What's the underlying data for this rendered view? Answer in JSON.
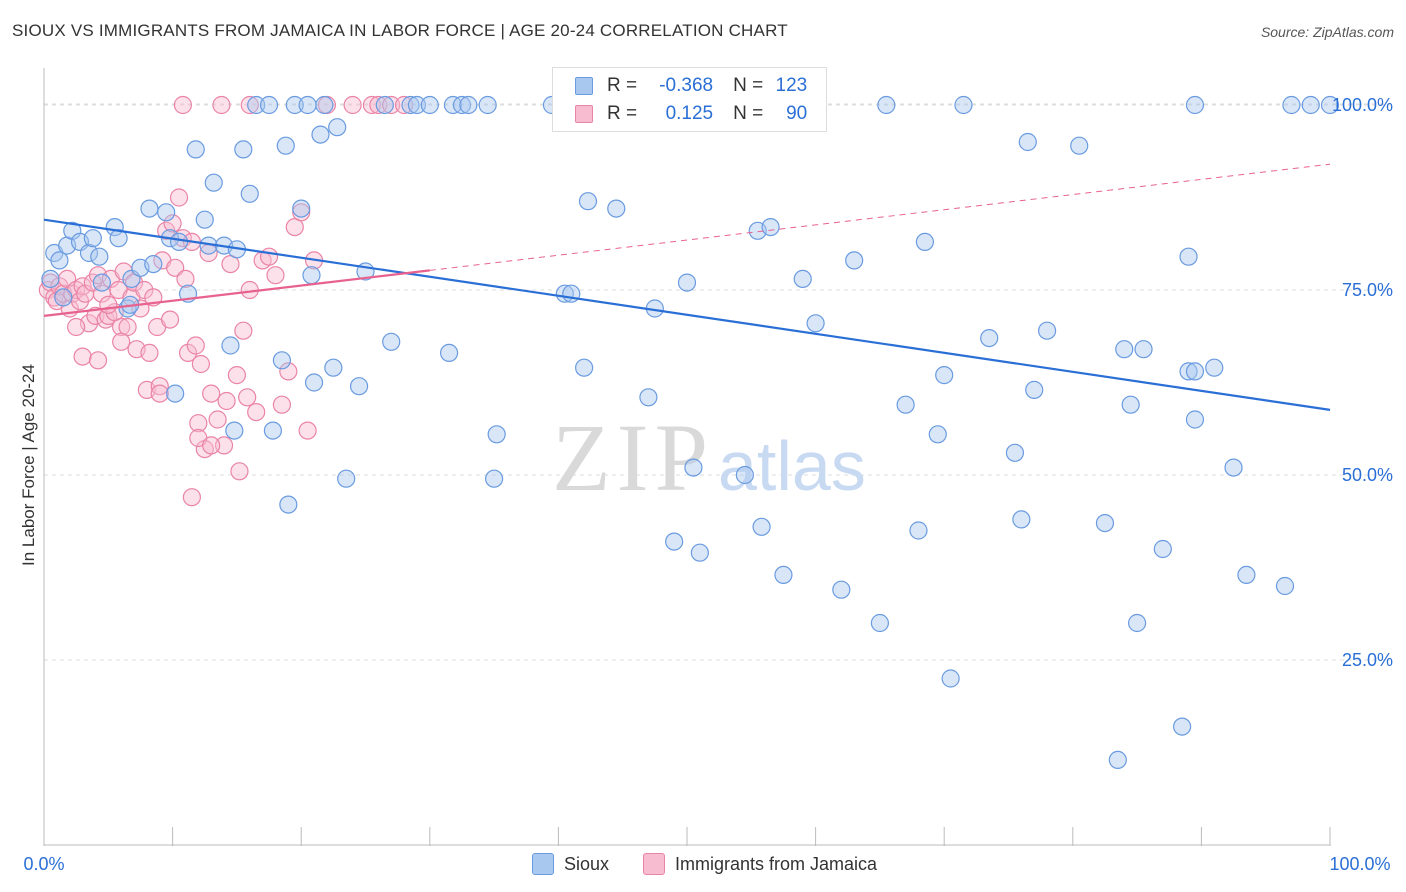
{
  "title": "SIOUX VS IMMIGRANTS FROM JAMAICA IN LABOR FORCE | AGE 20-24 CORRELATION CHART",
  "source": "Source: ZipAtlas.com",
  "watermark": {
    "zip": "ZIP",
    "atlas": "atlas"
  },
  "legend": {
    "rows": [
      {
        "r_label": "R =",
        "r_value": "-0.368",
        "n_label": "N =",
        "n_value": "123"
      },
      {
        "r_label": "R =",
        "r_value": "0.125",
        "n_label": "N =",
        "n_value": "90"
      }
    ]
  },
  "bottom_legend": {
    "sioux": "Sioux",
    "jamaica": "Immigrants from Jamaica"
  },
  "colors": {
    "sioux_fill": "#a9c8f0",
    "sioux_stroke": "#6a9be0",
    "sioux_line": "#2a6fd6",
    "jamaica_fill": "#f8bcd0",
    "jamaica_stroke": "#ea84a6",
    "jamaica_line": "#e8628f",
    "tick_text": "#2a6fd6",
    "grid": "#dddddd"
  },
  "chart_data": {
    "type": "scatter",
    "title": "SIOUX VS IMMIGRANTS FROM JAMAICA IN LABOR FORCE | AGE 20-24 CORRELATION CHART",
    "xlabel": "",
    "ylabel": "In Labor Force | Age 20-24",
    "xlim": [
      0,
      100
    ],
    "ylim": [
      0,
      105
    ],
    "x_tick_labels": [
      "0.0%",
      "100.0%"
    ],
    "y_ticks": [
      25,
      50,
      75,
      100
    ],
    "y_tick_labels": [
      "25.0%",
      "50.0%",
      "75.0%",
      "100.0%"
    ],
    "grid": true,
    "legend_position": "top-center",
    "series": [
      {
        "name": "Sioux",
        "r": -0.368,
        "n": 123,
        "trend": {
          "x": [
            0,
            100
          ],
          "y": [
            84.5,
            58.8
          ]
        },
        "points": [
          [
            0.5,
            76.5
          ],
          [
            0.8,
            80
          ],
          [
            1.2,
            79
          ],
          [
            1.5,
            74
          ],
          [
            1.8,
            81
          ],
          [
            2.2,
            83
          ],
          [
            2.8,
            81.5
          ],
          [
            3.5,
            80
          ],
          [
            3.8,
            82
          ],
          [
            4.3,
            79.5
          ],
          [
            4.5,
            76
          ],
          [
            5.5,
            83.5
          ],
          [
            5.8,
            82
          ],
          [
            6.5,
            72.5
          ],
          [
            6.7,
            73
          ],
          [
            6.8,
            76.5
          ],
          [
            7.5,
            78
          ],
          [
            8.2,
            86
          ],
          [
            8.5,
            78.5
          ],
          [
            9.5,
            85.5
          ],
          [
            9.8,
            82
          ],
          [
            10.2,
            61
          ],
          [
            10.5,
            81.5
          ],
          [
            11.2,
            74.5
          ],
          [
            11.8,
            94
          ],
          [
            12.5,
            84.5
          ],
          [
            12.8,
            81
          ],
          [
            13.2,
            89.5
          ],
          [
            14,
            81
          ],
          [
            14.5,
            67.5
          ],
          [
            14.8,
            56
          ],
          [
            15,
            80.5
          ],
          [
            15.5,
            94
          ],
          [
            16,
            88
          ],
          [
            16.5,
            100
          ],
          [
            17.5,
            100
          ],
          [
            17.8,
            56
          ],
          [
            18.5,
            65.5
          ],
          [
            18.8,
            94.5
          ],
          [
            19,
            46
          ],
          [
            19.5,
            100
          ],
          [
            20,
            86
          ],
          [
            20.5,
            100
          ],
          [
            20.8,
            77
          ],
          [
            21,
            62.5
          ],
          [
            21.5,
            96
          ],
          [
            21.8,
            100
          ],
          [
            22.5,
            64.5
          ],
          [
            22.8,
            97
          ],
          [
            23.5,
            49.5
          ],
          [
            24.5,
            62
          ],
          [
            25,
            77.5
          ],
          [
            26.5,
            100
          ],
          [
            27,
            68
          ],
          [
            28.5,
            100
          ],
          [
            29,
            100
          ],
          [
            30,
            100
          ],
          [
            31.5,
            66.5
          ],
          [
            31.8,
            100
          ],
          [
            32.5,
            100
          ],
          [
            33,
            100
          ],
          [
            34.5,
            100
          ],
          [
            35,
            49.5
          ],
          [
            35.2,
            55.5
          ],
          [
            39.5,
            100
          ],
          [
            40.5,
            74.5
          ],
          [
            41,
            74.5
          ],
          [
            42,
            64.5
          ],
          [
            42.3,
            87
          ],
          [
            44.5,
            86
          ],
          [
            45,
            100
          ],
          [
            47,
            60.5
          ],
          [
            47.5,
            72.5
          ],
          [
            49,
            41
          ],
          [
            50,
            76
          ],
          [
            50.5,
            51
          ],
          [
            51,
            39.5
          ],
          [
            54.5,
            100
          ],
          [
            54.5,
            50
          ],
          [
            55.5,
            83
          ],
          [
            55.8,
            43
          ],
          [
            56.5,
            83.5
          ],
          [
            57.5,
            36.5
          ],
          [
            59,
            76.5
          ],
          [
            60,
            70.5
          ],
          [
            62,
            34.5
          ],
          [
            63,
            79
          ],
          [
            65,
            30
          ],
          [
            65.5,
            100
          ],
          [
            67,
            59.5
          ],
          [
            68,
            42.5
          ],
          [
            68.5,
            81.5
          ],
          [
            69.5,
            55.5
          ],
          [
            70,
            63.5
          ],
          [
            70.5,
            22.5
          ],
          [
            71.5,
            100
          ],
          [
            73.5,
            68.5
          ],
          [
            75.5,
            53
          ],
          [
            76,
            44
          ],
          [
            77,
            61.5
          ],
          [
            76.5,
            95
          ],
          [
            78,
            69.5
          ],
          [
            80.5,
            94.5
          ],
          [
            82.5,
            43.5
          ],
          [
            83.5,
            11.5
          ],
          [
            84,
            67
          ],
          [
            84.5,
            59.5
          ],
          [
            85,
            30
          ],
          [
            85.5,
            67
          ],
          [
            87,
            40
          ],
          [
            88.5,
            16
          ],
          [
            89,
            79.5
          ],
          [
            89,
            64
          ],
          [
            89.5,
            64
          ],
          [
            89.5,
            57.5
          ],
          [
            89.5,
            100
          ],
          [
            91,
            64.5
          ],
          [
            92.5,
            51
          ],
          [
            93.5,
            36.5
          ],
          [
            96.5,
            35
          ],
          [
            97,
            100
          ],
          [
            98.5,
            100
          ],
          [
            100,
            100
          ]
        ]
      },
      {
        "name": "Immigrants from Jamaica",
        "r": 0.125,
        "n": 90,
        "trend": {
          "x": [
            0,
            100
          ],
          "y": [
            71.5,
            92.0
          ],
          "solid_until_x": 30
        },
        "points": [
          [
            0.3,
            75
          ],
          [
            0.5,
            76
          ],
          [
            0.8,
            74
          ],
          [
            1,
            73.5
          ],
          [
            1.2,
            75.5
          ],
          [
            1.5,
            74.5
          ],
          [
            1.8,
            76.5
          ],
          [
            2,
            72.5
          ],
          [
            2.2,
            74.5
          ],
          [
            2.5,
            75
          ],
          [
            2.8,
            73.5
          ],
          [
            3,
            75.5
          ],
          [
            3.2,
            74.5
          ],
          [
            3.5,
            70.5
          ],
          [
            3.8,
            76
          ],
          [
            4,
            71.5
          ],
          [
            4.2,
            77
          ],
          [
            4.5,
            74.5
          ],
          [
            4.8,
            71
          ],
          [
            5,
            71.5
          ],
          [
            5.2,
            76.5
          ],
          [
            5.5,
            72
          ],
          [
            5.8,
            75
          ],
          [
            6,
            70
          ],
          [
            6.2,
            77.5
          ],
          [
            6.5,
            70
          ],
          [
            6.8,
            74
          ],
          [
            7,
            76
          ],
          [
            7.2,
            67
          ],
          [
            7.5,
            72.5
          ],
          [
            7.8,
            75
          ],
          [
            8,
            61.5
          ],
          [
            8.2,
            66.5
          ],
          [
            8.5,
            74
          ],
          [
            8.8,
            70
          ],
          [
            9,
            62
          ],
          [
            9.2,
            79
          ],
          [
            9.5,
            83
          ],
          [
            9.8,
            71
          ],
          [
            10,
            84
          ],
          [
            10.2,
            78
          ],
          [
            10.5,
            87.5
          ],
          [
            10.8,
            82
          ],
          [
            11,
            76.5
          ],
          [
            11.2,
            66.5
          ],
          [
            11.5,
            81.5
          ],
          [
            11.8,
            67.5
          ],
          [
            12,
            57
          ],
          [
            12.2,
            65
          ],
          [
            12.5,
            53.5
          ],
          [
            12.8,
            80
          ],
          [
            13,
            61
          ],
          [
            13.5,
            57.5
          ],
          [
            14,
            54
          ],
          [
            14.2,
            60
          ],
          [
            14.5,
            78.5
          ],
          [
            15,
            63.5
          ],
          [
            15.2,
            50.5
          ],
          [
            15.5,
            69.5
          ],
          [
            15.8,
            60.5
          ],
          [
            16,
            75
          ],
          [
            16.5,
            58.5
          ],
          [
            17,
            79
          ],
          [
            17.5,
            79.5
          ],
          [
            18,
            77
          ],
          [
            18.5,
            59.5
          ],
          [
            19,
            64
          ],
          [
            19.5,
            83.5
          ],
          [
            20,
            85.5
          ],
          [
            20.5,
            56
          ],
          [
            21,
            79
          ],
          [
            22,
            100
          ],
          [
            24,
            100
          ],
          [
            25.5,
            100
          ],
          [
            26,
            100
          ],
          [
            27,
            100
          ],
          [
            28,
            100
          ],
          [
            10.8,
            100
          ],
          [
            13.8,
            100
          ],
          [
            16,
            100
          ],
          [
            11.5,
            47
          ],
          [
            9,
            61
          ],
          [
            3,
            66
          ],
          [
            12,
            55
          ],
          [
            13,
            54
          ],
          [
            6,
            68
          ],
          [
            2.5,
            70
          ],
          [
            5,
            73
          ],
          [
            4.2,
            65.5
          ]
        ]
      }
    ]
  }
}
